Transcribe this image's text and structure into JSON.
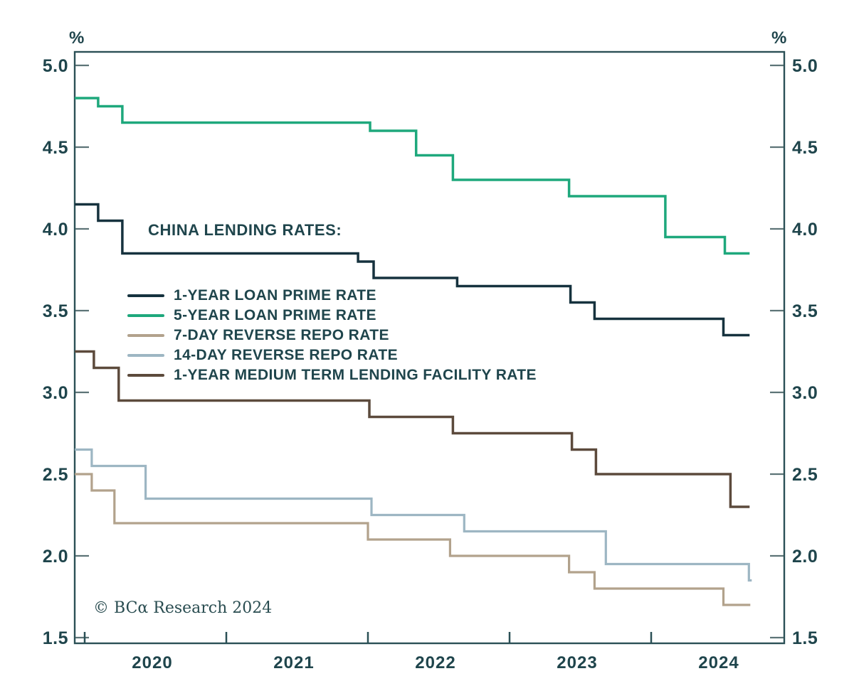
{
  "title": "CHINA LENDING RATES:",
  "copyright": "© BCα Research 2024",
  "axis": {
    "percent_left": "%",
    "percent_right": "%"
  },
  "colors": {
    "text": "#1f454c",
    "frame": "#2b5056",
    "side_tick": "#5d7477",
    "bottom_tick": "#2b5056",
    "background": "#ffffff"
  },
  "chart_data": {
    "type": "line",
    "subtype": "step",
    "title": "CHINA LENDING RATES:",
    "ylabel": "%",
    "grid": false,
    "legend_position": "inside-upper-left",
    "ylim": [
      1.47,
      5.08
    ],
    "xlim_years": [
      2019.93,
      2024.94
    ],
    "ytick_values": [
      5.0,
      4.5,
      4.0,
      3.5,
      3.0,
      2.5,
      2.0,
      1.5
    ],
    "ytick_labels": [
      "5.0",
      "4.5",
      "4.0",
      "3.5",
      "3.0",
      "2.5",
      "2.0",
      "1.5"
    ],
    "xtick_boundary_years": [
      2020,
      2021,
      2022,
      2023,
      2024
    ],
    "xtick_labels": [
      "2020",
      "2021",
      "2022",
      "2023",
      "2024"
    ],
    "series": [
      {
        "name": "1-YEAR LOAN PRIME RATE",
        "color": "#16323e",
        "width": 3.5,
        "start": [
          2019.93,
          4.15
        ],
        "steps": [
          [
            2020.095,
            4.05
          ],
          [
            2020.266,
            3.85
          ],
          [
            2021.93,
            3.8
          ],
          [
            2022.04,
            3.7
          ],
          [
            2022.63,
            3.65
          ],
          [
            2023.43,
            3.55
          ],
          [
            2023.6,
            3.45
          ],
          [
            2024.51,
            3.35
          ]
        ],
        "end": 2024.695
      },
      {
        "name": "5-YEAR LOAN PRIME RATE",
        "color": "#1ea87c",
        "width": 3.5,
        "start": [
          2019.93,
          4.8
        ],
        "steps": [
          [
            2020.095,
            4.75
          ],
          [
            2020.266,
            4.65
          ],
          [
            2022.015,
            4.6
          ],
          [
            2022.34,
            4.45
          ],
          [
            2022.6,
            4.3
          ],
          [
            2023.42,
            4.2
          ],
          [
            2024.1,
            3.95
          ],
          [
            2024.52,
            3.85
          ]
        ],
        "end": 2024.695
      },
      {
        "name": "7-DAY REVERSE REPO RATE",
        "color": "#b2a28c",
        "width": 3.2,
        "start": [
          2019.93,
          2.5
        ],
        "steps": [
          [
            2020.05,
            2.4
          ],
          [
            2020.21,
            2.2
          ],
          [
            2022.0,
            2.1
          ],
          [
            2022.58,
            2.0
          ],
          [
            2023.42,
            1.9
          ],
          [
            2023.6,
            1.8
          ],
          [
            2024.51,
            1.7
          ]
        ],
        "end": 2024.7
      },
      {
        "name": "14-DAY REVERSE REPO RATE",
        "color": "#9db6c3",
        "width": 3.2,
        "start": [
          2019.93,
          2.65
        ],
        "steps": [
          [
            2020.05,
            2.55
          ],
          [
            2020.43,
            2.35
          ],
          [
            2022.025,
            2.25
          ],
          [
            2022.68,
            2.15
          ],
          [
            2023.68,
            1.95
          ],
          [
            2024.69,
            1.85
          ]
        ],
        "end": 2024.71
      },
      {
        "name": "1-YEAR MEDIUM TERM LENDING FACILITY RATE",
        "color": "#5c4a3c",
        "width": 3.5,
        "start": [
          2019.93,
          3.25
        ],
        "steps": [
          [
            2020.065,
            3.15
          ],
          [
            2020.24,
            2.95
          ],
          [
            2022.01,
            2.85
          ],
          [
            2022.6,
            2.75
          ],
          [
            2023.44,
            2.65
          ],
          [
            2023.61,
            2.5
          ],
          [
            2024.56,
            2.3
          ]
        ],
        "end": 2024.695
      }
    ]
  }
}
